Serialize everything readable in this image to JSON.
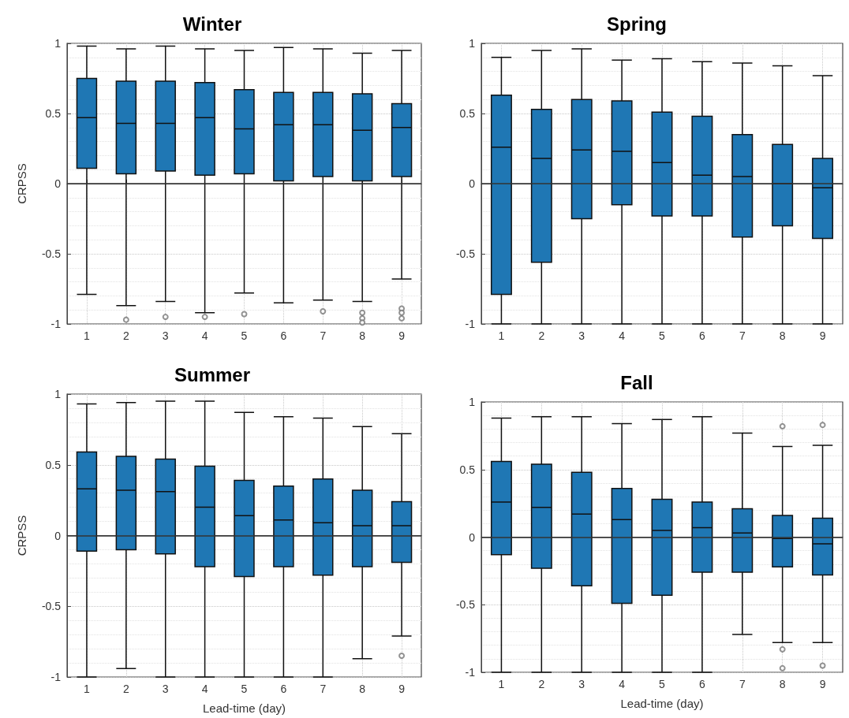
{
  "chart_data": [
    {
      "type": "box",
      "title": "Winter",
      "ylabel": "CRPSS",
      "categories": [
        "1",
        "2",
        "3",
        "4",
        "5",
        "6",
        "7",
        "8",
        "9"
      ],
      "ylim": [
        -1,
        1
      ],
      "yticks": [
        -1,
        -0.5,
        0,
        0.5,
        1
      ],
      "grid": true,
      "ref_lines": [
        {
          "axis": "y",
          "value": 0,
          "color": "#333333"
        }
      ],
      "series": [
        {
          "color": "#1f77b4",
          "boxes": [
            {
              "low": -0.79,
              "q1": 0.11,
              "median": 0.47,
              "q3": 0.75,
              "high": 0.98
            },
            {
              "low": -0.87,
              "q1": 0.07,
              "median": 0.43,
              "q3": 0.73,
              "high": 0.96,
              "outliers": [
                -0.97
              ]
            },
            {
              "low": -0.84,
              "q1": 0.09,
              "median": 0.43,
              "q3": 0.73,
              "high": 0.98,
              "outliers": [
                -0.95
              ]
            },
            {
              "low": -0.92,
              "q1": 0.06,
              "median": 0.47,
              "q3": 0.72,
              "high": 0.96,
              "outliers": [
                -0.95
              ]
            },
            {
              "low": -0.78,
              "q1": 0.07,
              "median": 0.39,
              "q3": 0.67,
              "high": 0.95,
              "outliers": [
                -0.93
              ]
            },
            {
              "low": -0.85,
              "q1": 0.02,
              "median": 0.42,
              "q3": 0.65,
              "high": 0.97
            },
            {
              "low": -0.83,
              "q1": 0.05,
              "median": 0.42,
              "q3": 0.65,
              "high": 0.96,
              "outliers": [
                -0.91
              ]
            },
            {
              "low": -0.84,
              "q1": 0.02,
              "median": 0.38,
              "q3": 0.64,
              "high": 0.93,
              "outliers": [
                -0.92,
                -0.96,
                -0.99
              ]
            },
            {
              "low": -0.68,
              "q1": 0.05,
              "median": 0.4,
              "q3": 0.57,
              "high": 0.95,
              "outliers": [
                -0.89,
                -0.92,
                -0.96
              ]
            }
          ]
        }
      ]
    },
    {
      "type": "box",
      "title": "Spring",
      "categories": [
        "1",
        "2",
        "3",
        "4",
        "5",
        "6",
        "7",
        "8",
        "9"
      ],
      "ylim": [
        -1,
        1
      ],
      "yticks": [
        -1,
        -0.5,
        0,
        0.5,
        1
      ],
      "grid": true,
      "ref_lines": [
        {
          "axis": "y",
          "value": 0,
          "color": "#333333"
        }
      ],
      "series": [
        {
          "color": "#1f77b4",
          "boxes": [
            {
              "low": -1,
              "q1": -0.79,
              "median": 0.26,
              "q3": 0.63,
              "high": 0.9
            },
            {
              "low": -1,
              "q1": -0.56,
              "median": 0.18,
              "q3": 0.53,
              "high": 0.95
            },
            {
              "low": -1,
              "q1": -0.25,
              "median": 0.24,
              "q3": 0.6,
              "high": 0.96
            },
            {
              "low": -1,
              "q1": -0.15,
              "median": 0.23,
              "q3": 0.59,
              "high": 0.88
            },
            {
              "low": -1,
              "q1": -0.23,
              "median": 0.15,
              "q3": 0.51,
              "high": 0.89
            },
            {
              "low": -1,
              "q1": -0.23,
              "median": 0.06,
              "q3": 0.48,
              "high": 0.87
            },
            {
              "low": -1,
              "q1": -0.38,
              "median": 0.05,
              "q3": 0.35,
              "high": 0.86
            },
            {
              "low": -1,
              "q1": -0.3,
              "median": 0,
              "q3": 0.28,
              "high": 0.84
            },
            {
              "low": -1,
              "q1": -0.39,
              "median": -0.03,
              "q3": 0.18,
              "high": 0.77
            }
          ]
        }
      ]
    },
    {
      "type": "box",
      "title": "Summer",
      "ylabel": "CRPSS",
      "xlabel": "Lead-time (day)",
      "categories": [
        "1",
        "2",
        "3",
        "4",
        "5",
        "6",
        "7",
        "8",
        "9"
      ],
      "ylim": [
        -1,
        1
      ],
      "yticks": [
        -1,
        -0.5,
        0,
        0.5,
        1
      ],
      "grid": true,
      "ref_lines": [
        {
          "axis": "y",
          "value": 0,
          "color": "#333333"
        }
      ],
      "series": [
        {
          "color": "#1f77b4",
          "boxes": [
            {
              "low": -1,
              "q1": -0.11,
              "median": 0.33,
              "q3": 0.59,
              "high": 0.93
            },
            {
              "low": -0.94,
              "q1": -0.1,
              "median": 0.32,
              "q3": 0.56,
              "high": 0.94
            },
            {
              "low": -1,
              "q1": -0.13,
              "median": 0.31,
              "q3": 0.54,
              "high": 0.95
            },
            {
              "low": -1,
              "q1": -0.22,
              "median": 0.2,
              "q3": 0.49,
              "high": 0.95
            },
            {
              "low": -1,
              "q1": -0.29,
              "median": 0.14,
              "q3": 0.39,
              "high": 0.87
            },
            {
              "low": -1,
              "q1": -0.22,
              "median": 0.11,
              "q3": 0.35,
              "high": 0.84
            },
            {
              "low": -1,
              "q1": -0.28,
              "median": 0.09,
              "q3": 0.4,
              "high": 0.83
            },
            {
              "low": -0.87,
              "q1": -0.22,
              "median": 0.07,
              "q3": 0.32,
              "high": 0.77
            },
            {
              "low": -0.71,
              "q1": -0.19,
              "median": 0.07,
              "q3": 0.24,
              "high": 0.72,
              "outliers": [
                -0.85
              ]
            }
          ]
        }
      ]
    },
    {
      "type": "box",
      "title": "Fall",
      "xlabel": "Lead-time (day)",
      "categories": [
        "1",
        "2",
        "3",
        "4",
        "5",
        "6",
        "7",
        "8",
        "9"
      ],
      "ylim": [
        -1,
        1
      ],
      "yticks": [
        -1,
        -0.5,
        0,
        0.5,
        1
      ],
      "grid": true,
      "ref_lines": [
        {
          "axis": "y",
          "value": 0,
          "color": "#333333"
        }
      ],
      "series": [
        {
          "color": "#1f77b4",
          "boxes": [
            {
              "low": -1,
              "q1": -0.13,
              "median": 0.26,
              "q3": 0.56,
              "high": 0.88
            },
            {
              "low": -1,
              "q1": -0.23,
              "median": 0.22,
              "q3": 0.54,
              "high": 0.89
            },
            {
              "low": -1,
              "q1": -0.36,
              "median": 0.17,
              "q3": 0.48,
              "high": 0.89
            },
            {
              "low": -1,
              "q1": -0.49,
              "median": 0.13,
              "q3": 0.36,
              "high": 0.84
            },
            {
              "low": -1,
              "q1": -0.43,
              "median": 0.05,
              "q3": 0.28,
              "high": 0.87
            },
            {
              "low": -1,
              "q1": -0.26,
              "median": 0.07,
              "q3": 0.26,
              "high": 0.89
            },
            {
              "low": -0.72,
              "q1": -0.26,
              "median": 0.03,
              "q3": 0.21,
              "high": 0.77
            },
            {
              "low": -0.78,
              "q1": -0.22,
              "median": -0.01,
              "q3": 0.16,
              "high": 0.67,
              "outliers": [
                0.82,
                -0.83,
                -0.97
              ]
            },
            {
              "low": -0.78,
              "q1": -0.28,
              "median": -0.05,
              "q3": 0.14,
              "high": 0.68,
              "outliers": [
                0.83,
                -0.95
              ]
            }
          ]
        }
      ]
    }
  ]
}
